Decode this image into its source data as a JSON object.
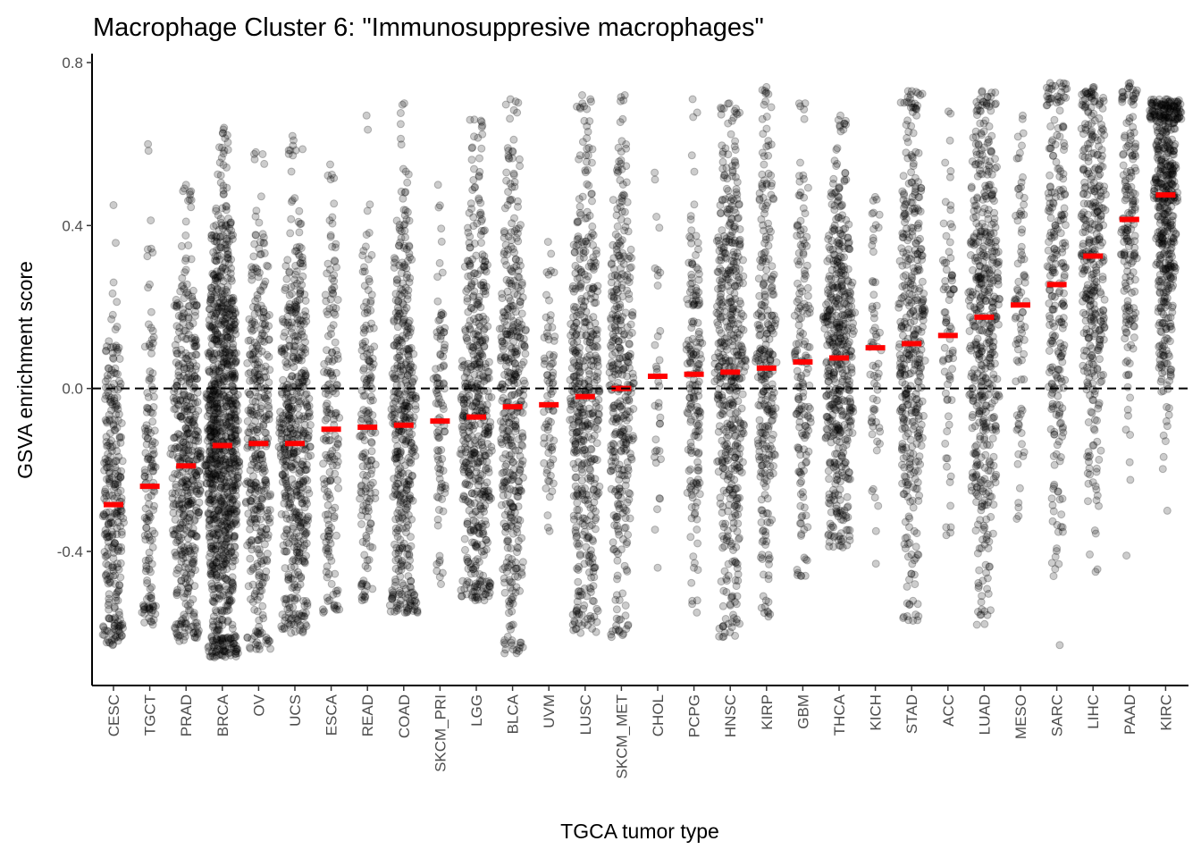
{
  "chart_data": {
    "type": "scatter",
    "subtype": "beeswarm with median markers",
    "title": "Macrophage Cluster 6: \"Immunosuppresive macrophages\"",
    "xlabel": "TGCA tumor type",
    "ylabel": "GSVA enrichment score",
    "ylim": [
      -0.72,
      0.82
    ],
    "yticks": [
      -0.4,
      0.0,
      0.4,
      0.8
    ],
    "ytick_labels": [
      "-0.4",
      "0.0",
      "0.4",
      "0.8"
    ],
    "reference_line": {
      "y": 0.0,
      "style": "dashed",
      "color": "#000000"
    },
    "grid": false,
    "legend": "none",
    "point_color": "#000000",
    "point_alpha": 0.2,
    "median_color": "#ff0000",
    "categories": [
      "CESC",
      "TGCT",
      "PRAD",
      "BRCA",
      "OV",
      "UCS",
      "ESCA",
      "READ",
      "COAD",
      "SKCM_PRI",
      "LGG",
      "BLCA",
      "UVM",
      "LUSC",
      "SKCM_MET",
      "CHOL",
      "PCPG",
      "HNSC",
      "KIRP",
      "GBM",
      "THCA",
      "KICH",
      "STAD",
      "ACC",
      "LUAD",
      "MESO",
      "SARC",
      "LIHC",
      "PAAD",
      "KIRC"
    ],
    "medians": [
      -0.285,
      -0.24,
      -0.19,
      -0.14,
      -0.135,
      -0.135,
      -0.1,
      -0.095,
      -0.09,
      -0.08,
      -0.07,
      -0.045,
      -0.04,
      -0.02,
      0.0,
      0.03,
      0.035,
      0.04,
      0.05,
      0.065,
      0.075,
      0.1,
      0.11,
      0.13,
      0.175,
      0.205,
      0.255,
      0.325,
      0.415,
      0.475
    ],
    "ranges": [
      [
        -0.63,
        0.45
      ],
      [
        -0.58,
        0.6
      ],
      [
        -0.62,
        0.5
      ],
      [
        -0.66,
        0.64
      ],
      [
        -0.64,
        0.58
      ],
      [
        -0.6,
        0.62
      ],
      [
        -0.55,
        0.55
      ],
      [
        -0.52,
        0.67
      ],
      [
        -0.55,
        0.7
      ],
      [
        -0.48,
        0.5
      ],
      [
        -0.52,
        0.66
      ],
      [
        -0.65,
        0.71
      ],
      [
        -0.35,
        0.36
      ],
      [
        -0.6,
        0.72
      ],
      [
        -0.61,
        0.72
      ],
      [
        -0.44,
        0.53
      ],
      [
        -0.55,
        0.71
      ],
      [
        -0.61,
        0.7
      ],
      [
        -0.56,
        0.74
      ],
      [
        -0.46,
        0.7
      ],
      [
        -0.39,
        0.67
      ],
      [
        -0.43,
        0.47
      ],
      [
        -0.57,
        0.73
      ],
      [
        -0.36,
        0.68
      ],
      [
        -0.58,
        0.73
      ],
      [
        -0.32,
        0.67
      ],
      [
        -0.63,
        0.75
      ],
      [
        -0.45,
        0.74
      ],
      [
        -0.41,
        0.75
      ],
      [
        -0.3,
        0.71
      ]
    ],
    "sample_counts": [
      300,
      150,
      500,
      1100,
      380,
      550,
      180,
      170,
      450,
      100,
      520,
      430,
      80,
      500,
      370,
      36,
      180,
      520,
      290,
      170,
      510,
      65,
      415,
      79,
      520,
      87,
      260,
      370,
      180,
      530
    ]
  }
}
